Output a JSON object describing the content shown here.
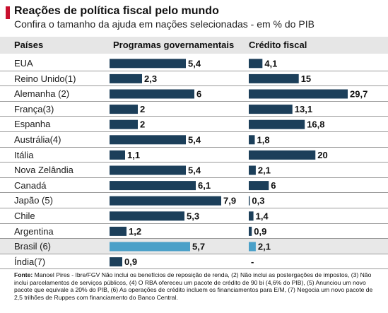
{
  "header": {
    "title": "Reações de política fiscal pelo mundo",
    "subtitle": "Confira o tamanho da ajuda em nações selecionadas - em % do PIB",
    "col_countries": "Países",
    "col_programs": "Programas governamentais",
    "col_credit": "Crédito fiscal"
  },
  "colors": {
    "bar": "#1c3f5a",
    "highlight_bar": "#4aa0c8",
    "accent": "#c8102e",
    "row_highlight": "#e8e8e8"
  },
  "chart_data": {
    "type": "bar",
    "orientation": "horizontal",
    "categories": [
      "EUA",
      "Reino Unido(1)",
      "Alemanha (2)",
      "França(3)",
      "Espanha",
      "Austrália(4)",
      "Itália",
      "Nova Zelândia",
      "Canadá",
      "Japão (5)",
      "Chile",
      "Argentina",
      "Brasil (6)",
      "Índia(7)"
    ],
    "highlight_category": "Brasil (6)",
    "series": [
      {
        "name": "Programas governamentais",
        "values": [
          5.4,
          2.3,
          6,
          2,
          2,
          5.4,
          1.1,
          5.4,
          6.1,
          7.9,
          5.3,
          1.2,
          5.7,
          0.9
        ],
        "labels": [
          "5,4",
          "2,3",
          "6",
          "2",
          "2",
          "5,4",
          "1,1",
          "5,4",
          "6,1",
          "7,9",
          "5,3",
          "1,2",
          "5,7",
          "0,9"
        ]
      },
      {
        "name": "Crédito fiscal",
        "values": [
          4.1,
          15,
          29.7,
          13.1,
          16.8,
          1.8,
          20,
          2.1,
          6,
          0.3,
          1.4,
          0.9,
          2.1,
          null
        ],
        "labels": [
          "4,1",
          "15",
          "29,7",
          "13,1",
          "16,8",
          "1,8",
          "20",
          "2,1",
          "6",
          "0,3",
          "1,4",
          "0,9",
          "2,1",
          "-"
        ]
      }
    ],
    "grid": false,
    "legend": "none"
  },
  "source": {
    "label": "Fonte:",
    "text": "Manoel Pires - Ibre/FGV Não inclui os benefícios de reposição de renda, (2) Não inclui as postergações de impostos, (3) Não inclui parcelamentos de serviços públicos, (4) O RBA ofereceu um pacote de crédito de 90 bi (4,6% do PIB), (5) Anunciou um novo pacote que equivale a 20% do PIB, (6) As operações de crédito incluem os financiamentos para E/M, (7) Negocia um novo pacote de 2,5 trilhões de Ruppes com financiamento do Banco Central."
  }
}
